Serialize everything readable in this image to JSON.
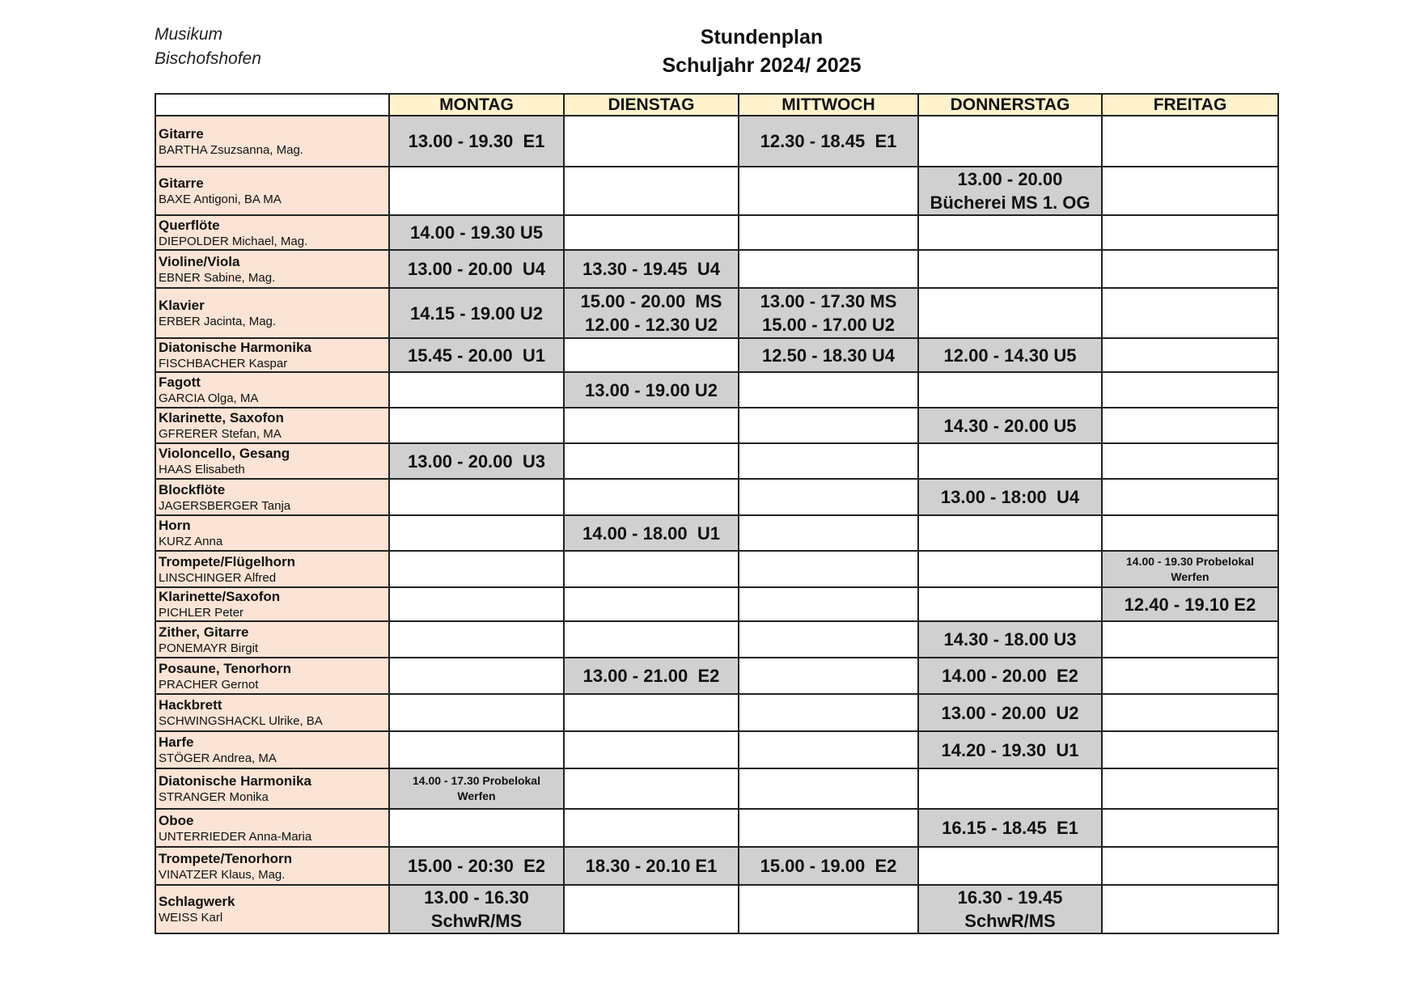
{
  "header": {
    "org_line1": "Musikum",
    "org_line2": "Bischofshofen",
    "title": "Stundenplan",
    "subtitle": "Schuljahr 2024/ 2025"
  },
  "colors": {
    "day_header": "#fff2cc",
    "name_column": "#fbe4d5",
    "occupied_slot": "#d0d0d0"
  },
  "days": [
    "MONTAG",
    "DIENSTAG",
    "MITTWOCH",
    "DONNERSTAG",
    "FREITAG"
  ],
  "rows": [
    {
      "instrument": "Gitarre",
      "teacher": "BARTHA Zsuzsanna, Mag.",
      "slots": [
        [
          "13.00 - 19.30  E1"
        ],
        [],
        [
          "12.30 - 18.45  E1"
        ],
        [],
        []
      ]
    },
    {
      "instrument": "Gitarre",
      "teacher": "BAXE Antigoni, BA MA",
      "slots": [
        [],
        [],
        [],
        [
          "13.00 - 20.00",
          "Bücherei MS 1. OG"
        ],
        []
      ]
    },
    {
      "instrument": "Querflöte",
      "teacher": "DIEPOLDER Michael, Mag.",
      "slots": [
        [
          "14.00 - 19.30 U5"
        ],
        [],
        [],
        [],
        []
      ]
    },
    {
      "instrument": "Violine/Viola",
      "teacher": "EBNER Sabine, Mag.",
      "slots": [
        [
          "13.00 - 20.00  U4"
        ],
        [
          "13.30 - 19.45  U4"
        ],
        [],
        [],
        []
      ]
    },
    {
      "instrument": "Klavier",
      "teacher": "ERBER Jacinta, Mag.",
      "slots": [
        [
          "14.15 - 19.00 U2"
        ],
        [
          "15.00 - 20.00  MS",
          "12.00 - 12.30 U2"
        ],
        [
          "13.00 - 17.30 MS",
          "15.00 - 17.00 U2"
        ],
        [],
        []
      ]
    },
    {
      "instrument": "Diatonische Harmonika",
      "teacher": "FISCHBACHER Kaspar",
      "slots": [
        [
          "15.45 - 20.00  U1"
        ],
        [],
        [
          "12.50 - 18.30 U4"
        ],
        [
          "12.00 - 14.30 U5"
        ],
        []
      ]
    },
    {
      "instrument": "Fagott",
      "teacher": "GARCIA Olga, MA",
      "slots": [
        [],
        [
          "13.00 - 19.00 U2"
        ],
        [],
        [],
        []
      ]
    },
    {
      "instrument": "Klarinette, Saxofon",
      "teacher": "GFRERER Stefan, MA",
      "slots": [
        [],
        [],
        [],
        [
          "14.30 - 20.00 U5"
        ],
        []
      ]
    },
    {
      "instrument": "Violoncello, Gesang",
      "teacher": "HAAS Elisabeth",
      "slots": [
        [
          "13.00 - 20.00  U3"
        ],
        [],
        [],
        [],
        []
      ]
    },
    {
      "instrument": "Blockflöte",
      "teacher": "JAGERSBERGER Tanja",
      "slots": [
        [],
        [],
        [],
        [
          "13.00 - 18:00  U4"
        ],
        []
      ]
    },
    {
      "instrument": "Horn",
      "teacher": "KURZ Anna",
      "slots": [
        [],
        [
          "14.00 - 18.00  U1"
        ],
        [],
        [],
        []
      ]
    },
    {
      "instrument": "Trompete/Flügelhorn",
      "teacher": "LINSCHINGER Alfred",
      "slots": [
        [],
        [],
        [],
        [],
        [
          "14.00 - 19.30 Probelokal",
          "Werfen"
        ]
      ],
      "small": [
        4
      ]
    },
    {
      "instrument": "Klarinette/Saxofon",
      "teacher": "PICHLER Peter",
      "slots": [
        [],
        [],
        [],
        [],
        [
          "12.40 - 19.10 E2"
        ]
      ]
    },
    {
      "instrument": "Zither, Gitarre",
      "teacher": "PONEMAYR Birgit",
      "slots": [
        [],
        [],
        [],
        [
          "14.30 - 18.00 U3"
        ],
        []
      ]
    },
    {
      "instrument": "Posaune, Tenorhorn",
      "teacher": "PRACHER Gernot",
      "slots": [
        [],
        [
          "13.00 - 21.00  E2"
        ],
        [],
        [
          "14.00 - 20.00  E2"
        ],
        []
      ]
    },
    {
      "instrument": "Hackbrett",
      "teacher": "SCHWINGSHACKL Ulrike, BA",
      "slots": [
        [],
        [],
        [],
        [
          "13.00 - 20.00  U2"
        ],
        []
      ]
    },
    {
      "instrument": "Harfe",
      "teacher": "STÖGER Andrea, MA",
      "slots": [
        [],
        [],
        [],
        [
          "14.20 - 19.30  U1"
        ],
        []
      ]
    },
    {
      "instrument": "Diatonische Harmonika",
      "teacher": "STRANGER Monika",
      "slots": [
        [
          "14.00 - 17.30 Probelokal",
          "Werfen"
        ],
        [],
        [],
        [],
        []
      ],
      "small": [
        0
      ]
    },
    {
      "instrument": "Oboe",
      "teacher": "UNTERRIEDER Anna-Maria",
      "slots": [
        [],
        [],
        [],
        [
          "16.15 - 18.45  E1"
        ],
        []
      ]
    },
    {
      "instrument": "Trompete/Tenorhorn",
      "teacher": "VINATZER Klaus, Mag.",
      "slots": [
        [
          "15.00 - 20:30  E2"
        ],
        [
          "18.30 - 20.10 E1"
        ],
        [
          "15.00 - 19.00  E2"
        ],
        [],
        []
      ]
    },
    {
      "instrument": "Schlagwerk",
      "teacher": "WEISS Karl",
      "slots": [
        [
          "13.00 - 16.30",
          "SchwR/MS"
        ],
        [],
        [],
        [
          "16.30 - 19.45",
          "SchwR/MS"
        ],
        []
      ]
    }
  ]
}
